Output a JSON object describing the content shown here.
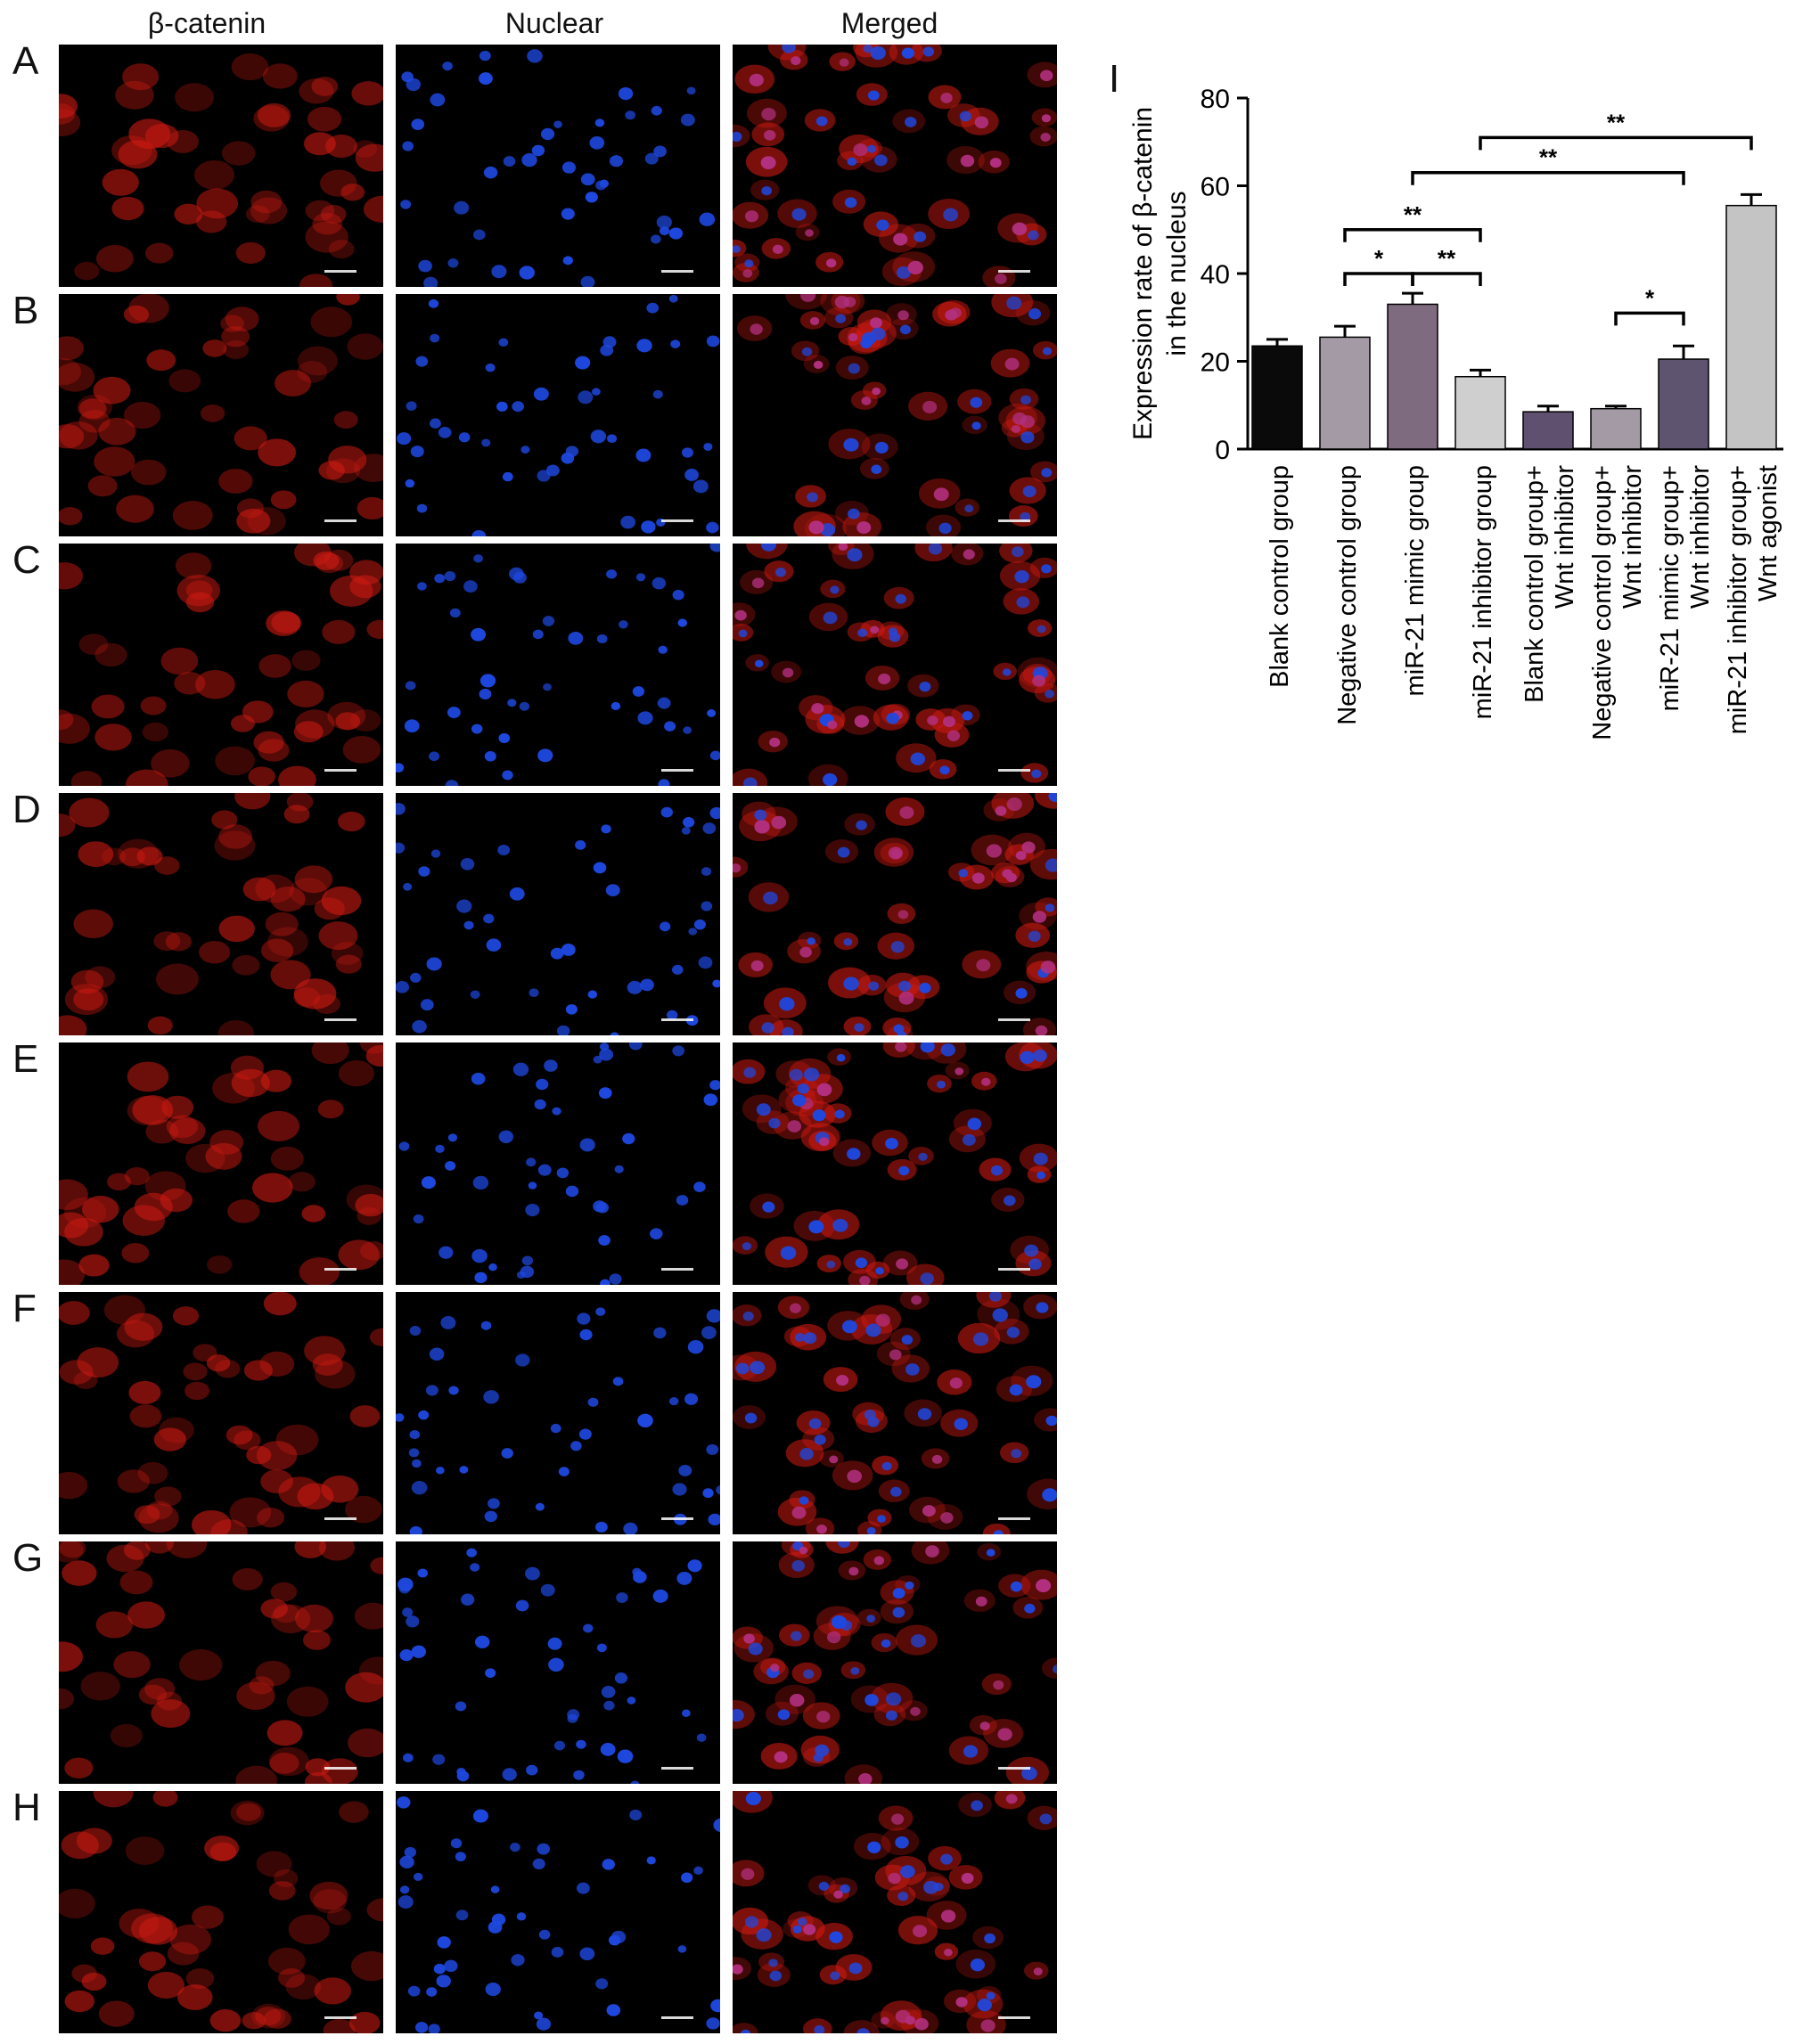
{
  "figure": {
    "column_headers": [
      "β-catenin",
      "Nuclear",
      "Merged"
    ],
    "row_letters": [
      "A",
      "B",
      "C",
      "D",
      "E",
      "F",
      "G",
      "H"
    ],
    "panel_letter": "I"
  },
  "colors": {
    "beta_catenin_stain": "#d01a12",
    "nuclear_stain": "#1e48e0",
    "merged_stain": "#b23080",
    "background": "#000000"
  },
  "chart_data": {
    "type": "bar",
    "title": "",
    "xlabel": "",
    "ylabel": "Expression rate of β-catenin in the nucleus",
    "ylabel_lines": [
      "Expression rate of β-catenin",
      "in the nucleus"
    ],
    "ylim": [
      0,
      80
    ],
    "yticks": [
      0,
      20,
      40,
      60,
      80
    ],
    "grid": false,
    "categories": [
      [
        "Blank control group"
      ],
      [
        "Negative control group"
      ],
      [
        "miR-21 mimic group"
      ],
      [
        "miR-21 inhibitor group"
      ],
      [
        "Blank control group+",
        "Wnt inhibitor"
      ],
      [
        "Negative control group+",
        "Wnt inhibitor"
      ],
      [
        "miR-21 mimic group+",
        "Wnt inhibitor"
      ],
      [
        "miR-21 inhibitor group+",
        "Wnt agonist"
      ]
    ],
    "values": [
      23.5,
      25.5,
      33.0,
      16.5,
      8.5,
      9.2,
      20.5,
      55.5
    ],
    "errors": [
      1.5,
      2.5,
      2.5,
      1.5,
      1.3,
      0.6,
      3.0,
      2.5
    ],
    "bar_colors": [
      "#0a0a0a",
      "#a49aa6",
      "#7f6b80",
      "#cfcfcf",
      "#605070",
      "#a49aa6",
      "#5f5470",
      "#c4c4c4"
    ],
    "significance": [
      {
        "from": 1,
        "to": 2,
        "label": "*",
        "y": 40
      },
      {
        "from": 2,
        "to": 3,
        "label": "**",
        "y": 40
      },
      {
        "from": 1,
        "to": 3,
        "label": "**",
        "y": 50
      },
      {
        "from": 5,
        "to": 6,
        "label": "*",
        "y": 31
      },
      {
        "from": 2,
        "to": 6,
        "label": "**",
        "y": 63
      },
      {
        "from": 3,
        "to": 7,
        "label": "**",
        "y": 71
      }
    ]
  }
}
